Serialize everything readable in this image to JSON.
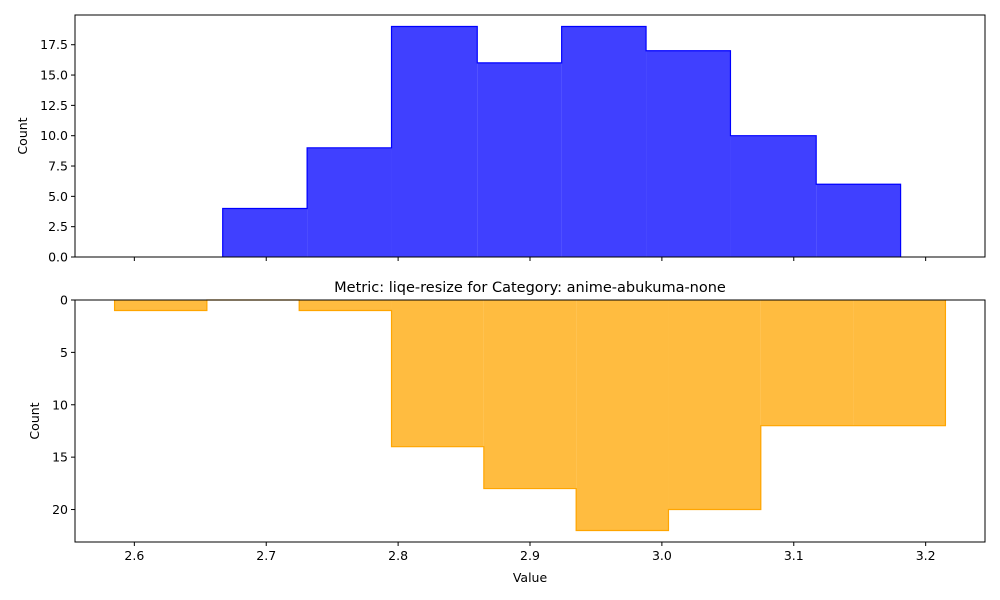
{
  "chart_data": [
    {
      "type": "histogram",
      "title": "",
      "xlabel": "",
      "ylabel": "Count",
      "xlim": [
        2.555,
        3.245
      ],
      "ylim": [
        0,
        19.95
      ],
      "y_inverted": false,
      "x_ticks": [
        2.6,
        2.7,
        2.8,
        2.9,
        3.0,
        3.1,
        3.2
      ],
      "x_tick_labels_shown": false,
      "y_ticks": [
        0.0,
        2.5,
        5.0,
        7.5,
        10.0,
        12.5,
        15.0,
        17.5
      ],
      "y_tick_labels": [
        "0.0",
        "2.5",
        "5.0",
        "7.5",
        "10.0",
        "12.5",
        "15.0",
        "17.5"
      ],
      "series": [
        {
          "color": "#0000ff",
          "fill_opacity": 0.75,
          "bin_edges": [
            2.667,
            2.731,
            2.795,
            2.86,
            2.924,
            2.988,
            3.052,
            3.117,
            3.181
          ],
          "counts": [
            4,
            9,
            19,
            16,
            19,
            17,
            10,
            6
          ]
        }
      ],
      "grid": false,
      "legend": "none"
    },
    {
      "type": "histogram",
      "title": "Metric: liqe-resize for Category: anime-abukuma-none",
      "xlabel": "Value",
      "ylabel": "Count",
      "xlim": [
        2.555,
        3.245
      ],
      "ylim": [
        23.1,
        0
      ],
      "y_inverted": true,
      "x_ticks": [
        2.6,
        2.7,
        2.8,
        2.9,
        3.0,
        3.1,
        3.2
      ],
      "x_tick_labels": [
        "2.6",
        "2.7",
        "2.8",
        "2.9",
        "3.0",
        "3.1",
        "3.2"
      ],
      "x_tick_labels_shown": true,
      "y_ticks": [
        0,
        5,
        10,
        15,
        20
      ],
      "y_tick_labels": [
        "0",
        "5",
        "10",
        "15",
        "20"
      ],
      "series": [
        {
          "color": "#ffa500",
          "fill_opacity": 0.75,
          "bin_edges": [
            2.585,
            2.655,
            2.725,
            2.795,
            2.865,
            2.935,
            3.005,
            3.075,
            3.145,
            3.215
          ],
          "counts": [
            1,
            0,
            1,
            14,
            18,
            22,
            20,
            12,
            12
          ]
        }
      ],
      "grid": false,
      "legend": "none"
    }
  ]
}
